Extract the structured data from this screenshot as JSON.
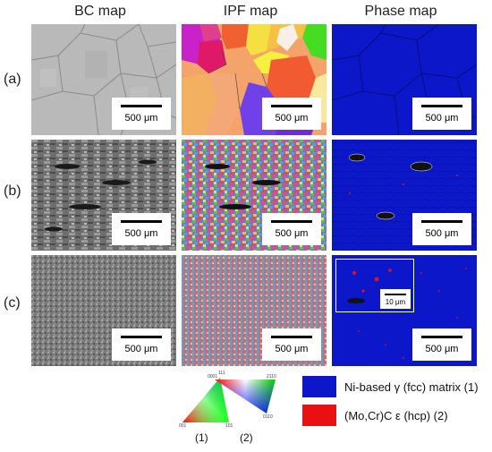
{
  "columns": [
    "BC map",
    "IPF map",
    "Phase map"
  ],
  "rows": [
    "(a)",
    "(b)",
    "(c)"
  ],
  "scale_label": "500 μm",
  "inset_scale_label": "10 μm",
  "triangles": {
    "cubic": {
      "caption": "(1)",
      "corners": [
        "101",
        "001",
        "111"
      ]
    },
    "hex": {
      "caption": "(2)",
      "corners": [
        "0001",
        "2110",
        "0110"
      ]
    }
  },
  "legend": [
    {
      "label": "Ni-based γ (fcc) matrix (1)",
      "color": "#0b17c8"
    },
    {
      "label": "(Mo,Cr)C ε (hcp) (2)",
      "color": "#e81010"
    }
  ],
  "colors": {
    "phase_blue": "#0b17c8",
    "carbide_red": "#e81010"
  }
}
